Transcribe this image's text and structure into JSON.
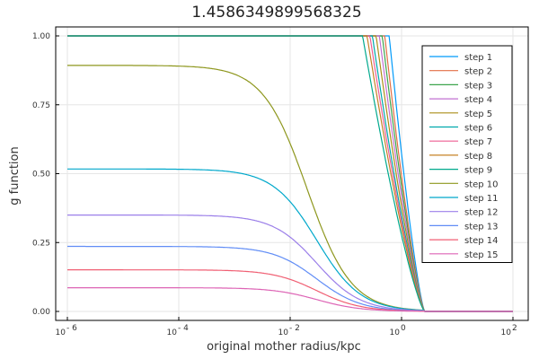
{
  "chart_data": {
    "type": "line",
    "title": "1.4586349899568325",
    "xlabel": "original mother radius/kpc",
    "ylabel": "g function",
    "xscale": "log10",
    "xlim": [
      1e-06,
      100
    ],
    "ylim": [
      0,
      1
    ],
    "x_ticks": [
      {
        "value": 1e-06,
        "base": "10",
        "exp": "- 6"
      },
      {
        "value": 0.0001,
        "base": "10",
        "exp": "- 4"
      },
      {
        "value": 0.01,
        "base": "10",
        "exp": "- 2"
      },
      {
        "value": 1,
        "base": "10",
        "exp": "0"
      },
      {
        "value": 100,
        "base": "10",
        "exp": "2"
      }
    ],
    "y_ticks": [
      "0.00",
      "0.25",
      "0.50",
      "0.75",
      "1.00"
    ],
    "y_tick_values": [
      0,
      0.25,
      0.5,
      0.75,
      1
    ],
    "grid": true,
    "legend_position": "top-right",
    "series": [
      {
        "name": "step 1",
        "color": "#009af9",
        "plateau": 1.0,
        "rc": 0.6
      },
      {
        "name": "step 2",
        "color": "#e26f46",
        "plateau": 1.0,
        "rc": 0.5
      },
      {
        "name": "step 3",
        "color": "#3da44d",
        "plateau": 1.0,
        "rc": 0.45
      },
      {
        "name": "step 4",
        "color": "#c271d2",
        "plateau": 1.0,
        "rc": 0.4
      },
      {
        "name": "step 5",
        "color": "#ac8e18",
        "plateau": 1.0,
        "rc": 0.35
      },
      {
        "name": "step 6",
        "color": "#00a9ad",
        "plateau": 1.0,
        "rc": 0.3
      },
      {
        "name": "step 7",
        "color": "#ed5e93",
        "plateau": 1.0,
        "rc": 0.27
      },
      {
        "name": "step 8",
        "color": "#c68225",
        "plateau": 1.0,
        "rc": 0.24
      },
      {
        "name": "step 9",
        "color": "#00a98d",
        "plateau": 1.0,
        "rc": 0.2
      },
      {
        "name": "step 10",
        "color": "#8e971e",
        "plateau": 0.893,
        "rc": 0.02
      },
      {
        "name": "step 11",
        "color": "#00a8cb",
        "plateau": 0.517,
        "rc": 0.03
      },
      {
        "name": "step 12",
        "color": "#9b7fe9",
        "plateau": 0.35,
        "rc": 0.03
      },
      {
        "name": "step 13",
        "color": "#618df6",
        "plateau": 0.236,
        "rc": 0.03
      },
      {
        "name": "step 14",
        "color": "#f05f73",
        "plateau": 0.151,
        "rc": 0.03
      },
      {
        "name": "step 15",
        "color": "#dd64b5",
        "plateau": 0.086,
        "rc": 0.03
      }
    ]
  }
}
